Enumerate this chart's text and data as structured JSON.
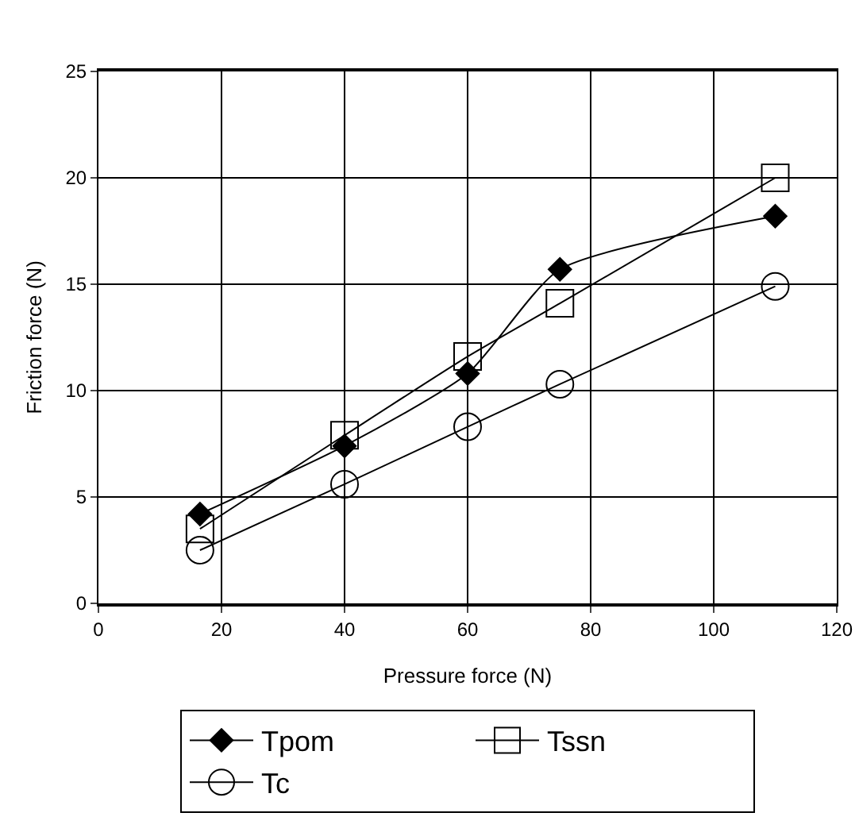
{
  "chart_data": {
    "type": "line",
    "xlabel": "Pressure force (N)",
    "ylabel": "Friction force (N)",
    "x": [
      16.5,
      40,
      60,
      75,
      110
    ],
    "series": [
      {
        "name": "Tpom",
        "color": "#000000",
        "marker": "diamond",
        "values": [
          4.2,
          7.4,
          10.8,
          15.7,
          18.2
        ]
      },
      {
        "name": "Tssn",
        "color": "#000000",
        "marker": "square",
        "values": [
          3.5,
          7.9,
          11.6,
          14.1,
          20.0
        ]
      },
      {
        "name": "Tc",
        "color": "#000000",
        "marker": "circle",
        "values": [
          2.5,
          5.6,
          8.3,
          10.3,
          14.9
        ]
      }
    ],
    "xlim": [
      0,
      120
    ],
    "xticks": [
      0,
      20,
      40,
      60,
      80,
      100,
      120
    ],
    "ylim": [
      0,
      25
    ],
    "yticks": [
      0,
      5,
      10,
      15,
      20,
      25
    ],
    "grid": true,
    "legend": "bottom",
    "line_style": "solid"
  }
}
